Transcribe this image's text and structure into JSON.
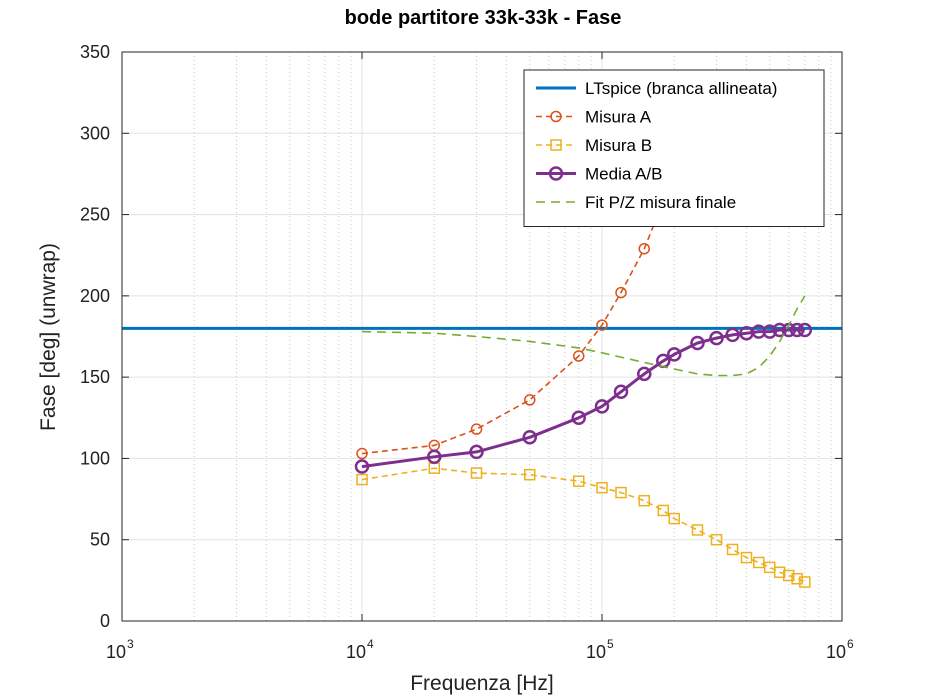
{
  "chart_data": {
    "type": "line",
    "title": "bode partitore 33k-33k - Fase",
    "xlabel": "Frequenza [Hz]",
    "ylabel": "Fase [deg] (unwrap)",
    "xscale": "log",
    "xlim": [
      1000,
      1000000
    ],
    "ylim": [
      0,
      350
    ],
    "x_tick_labels": [
      {
        "value": 1000,
        "base": "10",
        "exp": "3"
      },
      {
        "value": 10000,
        "base": "10",
        "exp": "4"
      },
      {
        "value": 100000,
        "base": "10",
        "exp": "5"
      },
      {
        "value": 1000000,
        "base": "10",
        "exp": "6"
      }
    ],
    "y_ticks": [
      0,
      50,
      100,
      150,
      200,
      250,
      300,
      350
    ],
    "grid": true,
    "legend_position": "top-right",
    "series": [
      {
        "name": "LTspice (branca allineata)",
        "color": "#0072BD",
        "line": "solid",
        "marker": "none",
        "x": [
          1000,
          1000000
        ],
        "y": [
          180,
          180
        ]
      },
      {
        "name": "Misura A",
        "color": "#D95319",
        "line": "dashed",
        "marker": "circle",
        "x": [
          10000,
          20000,
          30000,
          50000,
          80000,
          100000,
          120000,
          150000,
          200000
        ],
        "y": [
          103,
          108,
          118,
          136,
          163,
          182,
          202,
          229,
          275
        ]
      },
      {
        "name": "Misura B",
        "color": "#EDB120",
        "line": "dashed",
        "marker": "square",
        "x": [
          10000,
          20000,
          30000,
          50000,
          80000,
          100000,
          120000,
          150000,
          180000,
          200000,
          250000,
          300000,
          350000,
          400000,
          450000,
          500000,
          550000,
          600000,
          650000,
          700000
        ],
        "y": [
          87,
          94,
          91,
          90,
          86,
          82,
          79,
          74,
          68,
          63,
          56,
          50,
          44,
          39,
          36,
          33,
          30,
          28,
          26,
          24
        ]
      },
      {
        "name": "Media A/B",
        "color": "#7E2F8E",
        "line": "solid",
        "marker": "circle",
        "x": [
          10000,
          20000,
          30000,
          50000,
          80000,
          100000,
          120000,
          150000,
          180000,
          200000,
          250000,
          300000,
          350000,
          400000,
          450000,
          500000,
          550000,
          600000,
          650000,
          700000
        ],
        "y": [
          95,
          101,
          104,
          113,
          125,
          132,
          141,
          152,
          160,
          164,
          171,
          174,
          176,
          177,
          178,
          178,
          179,
          179,
          179,
          179
        ]
      },
      {
        "name": "Fit P/Z misura finale",
        "color": "#77AC30",
        "line": "dashed",
        "marker": "none",
        "x": [
          10000,
          20000,
          30000,
          50000,
          80000,
          100000,
          150000,
          200000,
          250000,
          300000,
          350000,
          400000,
          450000,
          500000,
          550000,
          600000,
          650000,
          700000
        ],
        "y": [
          178,
          177,
          175,
          172,
          168,
          165,
          159,
          155,
          152,
          151,
          151,
          152,
          156,
          163,
          172,
          182,
          192,
          200
        ]
      }
    ]
  }
}
